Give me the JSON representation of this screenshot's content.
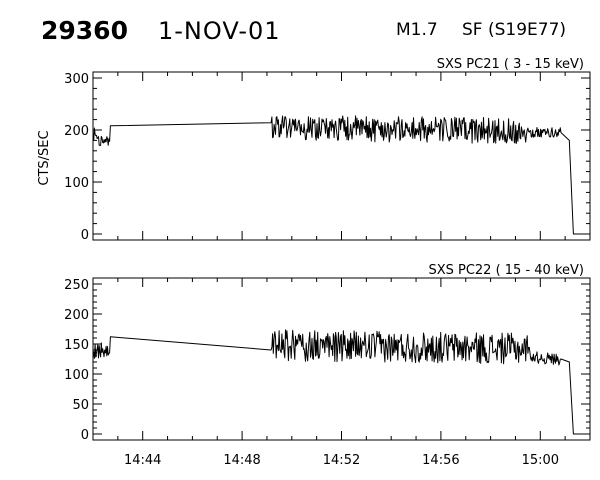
{
  "header": {
    "event_number": "29360",
    "date": "1-NOV-01",
    "flare_class": "M1.7",
    "location": "SF (S19E77)"
  },
  "chart_data": [
    {
      "type": "line",
      "title": "SXS PC21  (  3 - 15 keV)",
      "ylabel": "CTS/SEC",
      "xlabel": "",
      "ylim": [
        0,
        300
      ],
      "yticks": [
        0,
        100,
        200,
        300
      ],
      "ytick_labels": [
        "0",
        "100",
        "200",
        "300"
      ],
      "xlim": [
        "14:42:00",
        "15:02:00"
      ],
      "xticks": [
        "14:44",
        "14:48",
        "14:52",
        "14:56",
        "15:00"
      ],
      "grid": false,
      "series": [
        {
          "x": [
            "14:42:00",
            "14:42:20",
            "14:42:40",
            "14:42:42",
            "14:49:10",
            "14:49:12",
            "14:59:30",
            "14:59:40",
            "15:00:30",
            "15:00:50",
            "15:01:10",
            "15:01:20",
            "15:01:40",
            "15:02:00"
          ],
          "y": [
            192,
            180,
            178,
            208,
            214,
            205,
            198,
            195,
            195,
            195,
            180,
            0,
            0,
            0
          ],
          "noise": [
            14,
            12,
            0,
            0,
            0,
            25,
            10,
            10,
            10,
            0,
            0,
            0,
            0
          ]
        }
      ]
    },
    {
      "type": "line",
      "title": "SXS PC22  ( 15 - 40 keV)",
      "ylabel": "",
      "xlabel": "",
      "ylim": [
        0,
        250
      ],
      "yticks": [
        0,
        50,
        100,
        150,
        200,
        250
      ],
      "ytick_labels": [
        "0",
        "50",
        "100",
        "150",
        "200",
        "250"
      ],
      "xlim": [
        "14:42:00",
        "15:02:00"
      ],
      "xticks": [
        "14:44",
        "14:48",
        "14:52",
        "14:56",
        "15:00"
      ],
      "xtick_labels": [
        "14:44",
        "14:48",
        "14:52",
        "14:56",
        "15:00"
      ],
      "grid": false,
      "series": [
        {
          "x": [
            "14:42:00",
            "14:42:20",
            "14:42:40",
            "14:42:42",
            "14:49:10",
            "14:49:12",
            "14:59:30",
            "14:59:40",
            "15:00:30",
            "15:00:50",
            "15:01:10",
            "15:01:20",
            "15:01:40",
            "15:02:00"
          ],
          "y": [
            138,
            142,
            135,
            162,
            140,
            148,
            142,
            128,
            125,
            125,
            120,
            0,
            0,
            0
          ],
          "noise": [
            14,
            12,
            0,
            0,
            0,
            26,
            8,
            10,
            10,
            0,
            0,
            0,
            0
          ]
        }
      ]
    }
  ]
}
